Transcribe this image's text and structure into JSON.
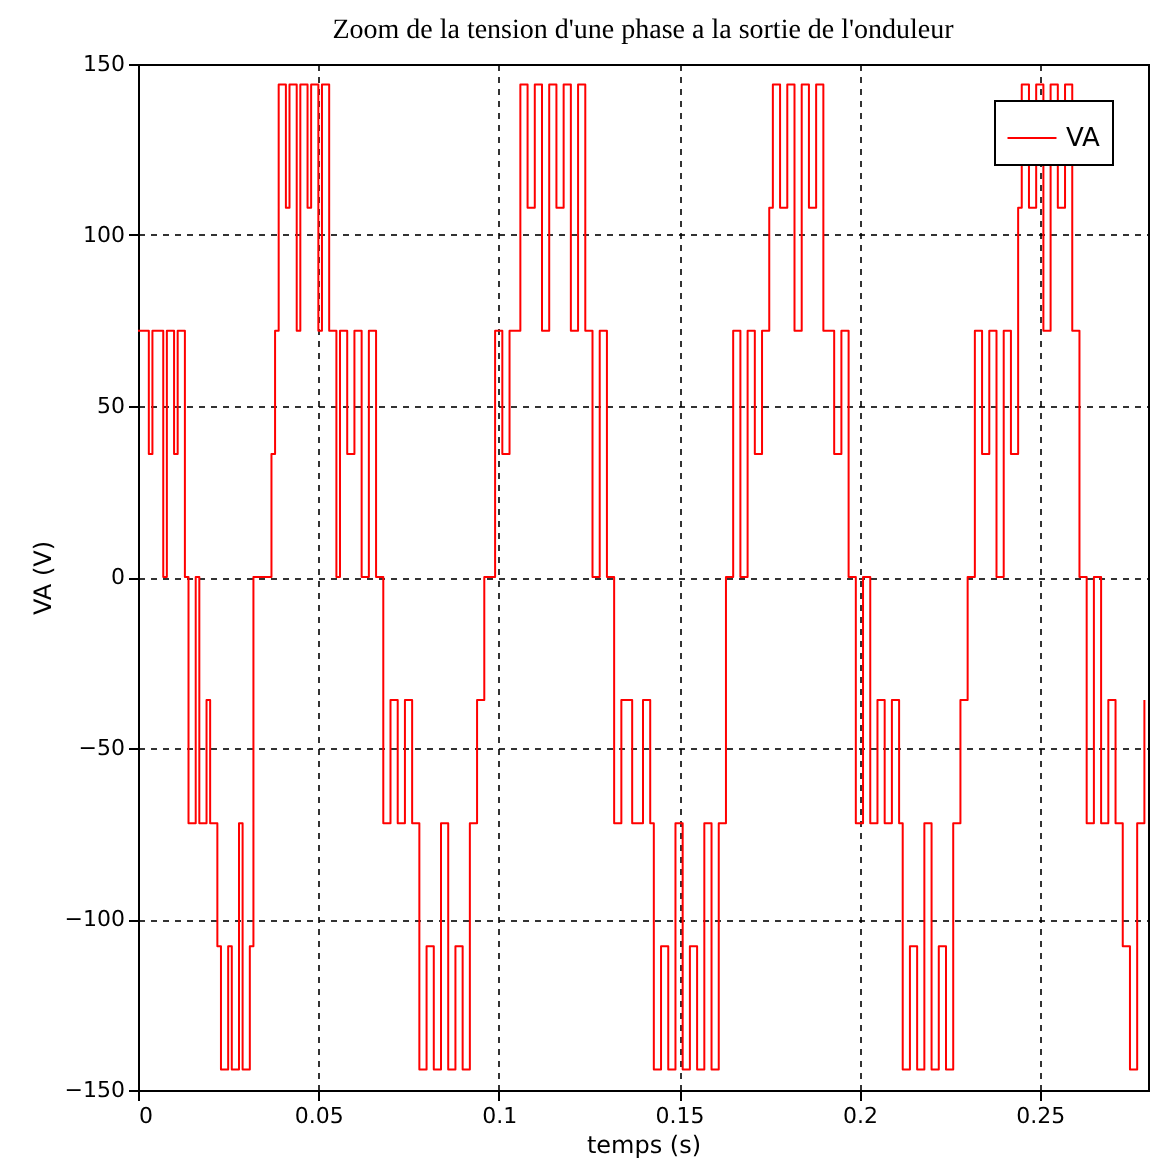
{
  "chart_data": {
    "type": "step",
    "title": "Zoom de la tension d'une phase a la sortie de l'onduleur",
    "xlabel": "temps (s)",
    "ylabel": "VA (V)",
    "x": [
      0,
      0.003,
      0.004,
      0.007,
      0.008,
      0.01,
      0.011,
      0.013,
      0.014,
      0.016,
      0.017,
      0.019,
      0.02,
      0.022,
      0.023,
      0.025,
      0.026,
      0.028,
      0.029,
      0.031,
      0.032,
      0.037,
      0.038,
      0.039,
      0.041,
      0.042,
      0.044,
      0.045,
      0.047,
      0.048,
      0.05,
      0.051,
      0.053,
      0.055,
      0.056,
      0.058,
      0.06,
      0.062,
      0.064,
      0.066,
      0.068,
      0.07,
      0.072,
      0.074,
      0.076,
      0.078,
      0.08,
      0.082,
      0.084,
      0.086,
      0.088,
      0.09,
      0.092,
      0.094,
      0.096,
      0.099,
      0.101,
      0.103,
      0.106,
      0.108,
      0.11,
      0.112,
      0.114,
      0.116,
      0.118,
      0.12,
      0.122,
      0.124,
      0.126,
      0.128,
      0.13,
      0.132,
      0.134,
      0.137,
      0.14,
      0.142,
      0.143,
      0.145,
      0.147,
      0.149,
      0.151,
      0.153,
      0.155,
      0.157,
      0.159,
      0.161,
      0.163,
      0.165,
      0.167,
      0.169,
      0.171,
      0.173,
      0.175,
      0.176,
      0.178,
      0.18,
      0.182,
      0.184,
      0.186,
      0.188,
      0.19,
      0.193,
      0.195,
      0.197,
      0.199,
      0.201,
      0.203,
      0.205,
      0.207,
      0.209,
      0.211,
      0.212,
      0.214,
      0.216,
      0.218,
      0.22,
      0.222,
      0.224,
      0.226,
      0.228,
      0.23,
      0.232,
      0.234,
      0.236,
      0.238,
      0.24,
      0.242,
      0.244,
      0.245,
      0.247,
      0.249,
      0.251,
      0.253,
      0.255,
      0.257,
      0.259,
      0.261,
      0.263,
      0.265,
      0.267,
      0.269,
      0.271,
      0.273,
      0.275,
      0.277,
      0.279
    ],
    "series": [
      {
        "name": "VA",
        "color": "#ff0000",
        "values": [
          72,
          36,
          72,
          0,
          72,
          36,
          72,
          0,
          -72,
          0,
          -72,
          -36,
          -72,
          -108,
          -144,
          -108,
          -144,
          -72,
          -144,
          -108,
          0,
          36,
          72,
          144,
          108,
          144,
          72,
          144,
          108,
          144,
          72,
          144,
          72,
          0,
          72,
          36,
          72,
          0,
          72,
          0,
          -72,
          -36,
          -72,
          -36,
          -72,
          -144,
          -108,
          -144,
          -72,
          -144,
          -108,
          -144,
          -72,
          -36,
          0,
          72,
          36,
          72,
          144,
          108,
          144,
          72,
          144,
          108,
          144,
          72,
          144,
          72,
          0,
          72,
          0,
          -72,
          -36,
          -72,
          -36,
          -72,
          -144,
          -108,
          -144,
          -72,
          -144,
          -108,
          -144,
          -72,
          -144,
          -72,
          0,
          72,
          0,
          72,
          36,
          72,
          108,
          144,
          108,
          144,
          72,
          144,
          108,
          144,
          72,
          36,
          72,
          0,
          -72,
          0,
          -72,
          -36,
          -72,
          -36,
          -72,
          -144,
          -108,
          -144,
          -72,
          -144,
          -108,
          -144,
          -72,
          -36,
          0,
          72,
          36,
          72,
          0,
          72,
          36,
          108,
          144,
          108,
          144,
          72,
          144,
          108,
          144,
          72,
          0,
          -72,
          0,
          -72,
          -36,
          -72,
          -108,
          -144,
          -72,
          -36
        ]
      }
    ],
    "xlim": [
      0,
      0.28
    ],
    "xticks": [
      0,
      0.05,
      0.1,
      0.15,
      0.2,
      0.25
    ],
    "ylim": [
      -150,
      150
    ],
    "yticks": [
      -150,
      -100,
      -50,
      0,
      50,
      100,
      150
    ],
    "grid": true,
    "legend": "top right",
    "line_style": "solid"
  }
}
